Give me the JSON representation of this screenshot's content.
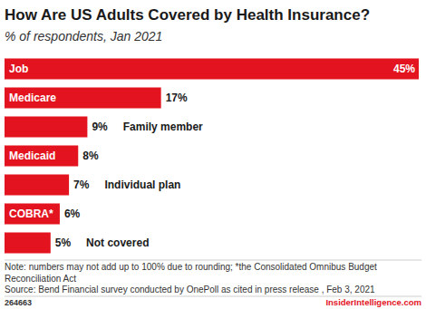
{
  "chart_data": {
    "type": "bar",
    "orientation": "horizontal",
    "title": "How Are US Adults Covered by Health Insurance?",
    "subtitle": "% of respondents, Jan 2021",
    "categories": [
      "Job",
      "Medicare",
      "Family member",
      "Medicaid",
      "Individual plan",
      "COBRA*",
      "Not covered"
    ],
    "values": [
      45,
      17,
      9,
      8,
      7,
      6,
      5
    ],
    "value_labels": [
      "45%",
      "17%",
      "9%",
      "8%",
      "7%",
      "6%",
      "5%"
    ],
    "color": "#e3141f",
    "xlim": [
      0,
      45
    ],
    "data_labels": true,
    "tick_labels": false,
    "grid": false,
    "note": "Note: numbers may not add up to 100% due to rounding; *the Consolidated Omnibus Budget Reconciliation Act",
    "source": "Source: Bend Financial survey conducted by OnePoll as cited in press release , Feb 3, 2021",
    "chart_id": "264663",
    "publisher": "InsiderIntelligence.com"
  }
}
